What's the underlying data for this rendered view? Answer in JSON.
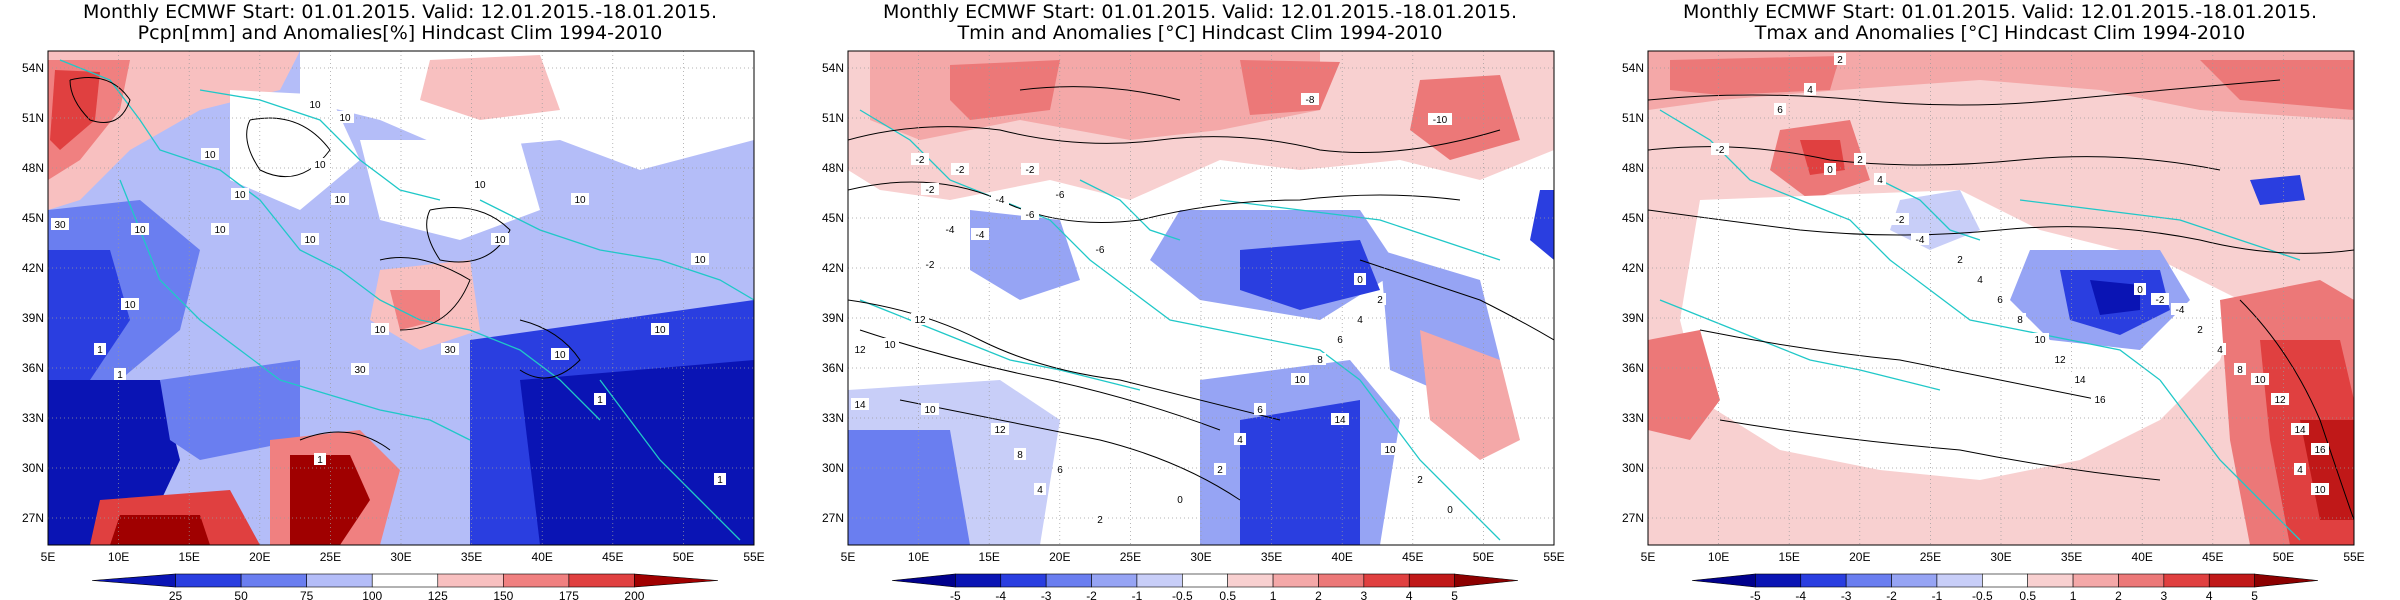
{
  "panels": [
    {
      "id": "pcpn",
      "title_line1": "Monthly ECMWF Start: 01.01.2015. Valid: 12.01.2015.-18.01.2015.",
      "title_line2": "Pcpn[mm] and Anomalies[%] Hindcast Clim 1994-2010",
      "colorbar": {
        "labels": [
          "25",
          "50",
          "75",
          "100",
          "125",
          "150",
          "175",
          "200"
        ],
        "colors": [
          "#0a14b4",
          "#2a3ee0",
          "#6a7ef0",
          "#b4bdf8",
          "#ffffff",
          "#f8c0c0",
          "#f08080",
          "#e04040",
          "#a00000"
        ]
      },
      "contour_labels": [
        "10",
        "10",
        "10",
        "10",
        "10",
        "10",
        "30",
        "10",
        "10",
        "30",
        "10",
        "10",
        "1",
        "1",
        "1",
        "1",
        "10",
        "10",
        "10",
        "10",
        "10",
        "10",
        "30",
        "10",
        "1"
      ]
    },
    {
      "id": "tmin",
      "title_line1": "Monthly ECMWF Start: 01.01.2015. Valid: 12.01.2015.-18.01.2015.",
      "title_line2": "Tmin and Anomalies [°C] Hindcast Clim 1994-2010",
      "colorbar": {
        "labels": [
          "-5",
          "-4",
          "-3",
          "-2",
          "-1",
          "-0.5",
          "0.5",
          "1",
          "2",
          "3",
          "4",
          "5"
        ],
        "colors": [
          "#00008c",
          "#0a14b4",
          "#2a3ee0",
          "#6a7ef0",
          "#96a4f4",
          "#c8cef8",
          "#ffffff",
          "#f8d0d0",
          "#f4a8a8",
          "#ec7878",
          "#e04040",
          "#c01818",
          "#8c0000"
        ]
      },
      "contour_labels": [
        "-8",
        "-10",
        "-2",
        "-2",
        "-2",
        "-2",
        "-4",
        "-6",
        "-6",
        "-6",
        "-4",
        "-2",
        "-4",
        "0",
        "2",
        "4",
        "6",
        "8",
        "10",
        "12",
        "12",
        "14",
        "10",
        "12",
        "8",
        "6",
        "4",
        "2",
        "0",
        "2",
        "4",
        "6",
        "10",
        "14",
        "10",
        "2",
        "0"
      ]
    },
    {
      "id": "tmax",
      "title_line1": "Monthly ECMWF Start: 01.01.2015. Valid: 12.01.2015.-18.01.2015.",
      "title_line2": "Tmax and Anomalies [°C] Hindcast Clim 1994-2010",
      "colorbar": {
        "labels": [
          "-5",
          "-4",
          "-3",
          "-2",
          "-1",
          "-0.5",
          "0.5",
          "1",
          "2",
          "3",
          "4",
          "5"
        ],
        "colors": [
          "#00008c",
          "#0a14b4",
          "#2a3ee0",
          "#6a7ef0",
          "#96a4f4",
          "#c8cef8",
          "#ffffff",
          "#f8d0d0",
          "#f4a8a8",
          "#ec7878",
          "#e04040",
          "#c01818",
          "#8c0000"
        ]
      },
      "contour_labels": [
        "2",
        "4",
        "6",
        "-2",
        "0",
        "2",
        "4",
        "-2",
        "-4",
        "2",
        "4",
        "6",
        "8",
        "10",
        "12",
        "14",
        "16",
        "0",
        "-2",
        "-4",
        "2",
        "4",
        "8",
        "10",
        "12",
        "14",
        "16",
        "4",
        "10"
      ]
    }
  ],
  "axes": {
    "lat_labels": [
      "54N",
      "51N",
      "48N",
      "45N",
      "42N",
      "39N",
      "36N",
      "33N",
      "30N",
      "27N"
    ],
    "lon_labels": [
      "5E",
      "10E",
      "15E",
      "20E",
      "25E",
      "30E",
      "35E",
      "40E",
      "45E",
      "50E",
      "55E"
    ]
  },
  "colors": {
    "coastline": "#20c8c8",
    "contour": "#000000",
    "grid": "#9a9a9a"
  }
}
